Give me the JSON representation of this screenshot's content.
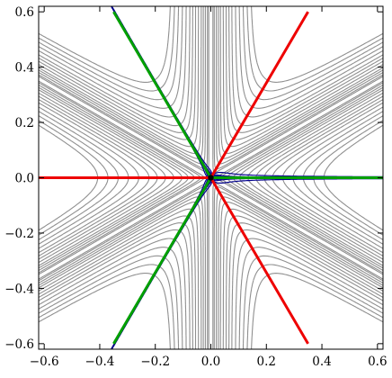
{
  "chart_data": {
    "type": "contour-streamline",
    "title": "",
    "xlabel": "",
    "ylabel": "",
    "xlim": [
      -0.62,
      0.62
    ],
    "ylim": [
      -0.62,
      0.62
    ],
    "x_ticks": [
      -0.6,
      -0.4,
      -0.2,
      0.0,
      0.2,
      0.4,
      0.6
    ],
    "x_tick_labels": [
      "−0.6",
      "−0.4",
      "−0.2",
      "0.0",
      "0.2",
      "0.4",
      "0.6"
    ],
    "y_ticks": [
      -0.6,
      -0.4,
      -0.2,
      0.0,
      0.2,
      0.4,
      0.6
    ],
    "y_tick_labels": [
      "−0.6",
      "−0.4",
      "−0.2",
      "0.0",
      "0.2",
      "0.4",
      "0.6"
    ],
    "grid": false,
    "legend": "none",
    "colors": {
      "contours": "#8f8f8f",
      "streamlines": "#00008b",
      "red_rays": "#ee0000",
      "green_rays": "#00a000",
      "center_point": "#000000",
      "frame": "#000000"
    },
    "contour_levels": {
      "description_function": "Re(z^3)/|z|^2 potential family",
      "levels": [
        -0.55,
        -0.5,
        -0.45,
        -0.4,
        -0.35,
        -0.3,
        -0.26,
        -0.22,
        -0.18,
        -0.14,
        -0.11,
        -0.08,
        -0.05,
        -0.03,
        0.03,
        0.05,
        0.08,
        0.11,
        0.14,
        0.18,
        0.22,
        0.26,
        0.3,
        0.35,
        0.4,
        0.45,
        0.5,
        0.55
      ]
    },
    "streamlines": {
      "center": [
        0.0,
        0.0
      ],
      "angles_deg": [
        8,
        16,
        24,
        32,
        44,
        50,
        56,
        68,
        76,
        84,
        92,
        100,
        108,
        126,
        135,
        142,
        150,
        160,
        170,
        190,
        200,
        210,
        218,
        225,
        234,
        252,
        260,
        268,
        276,
        284,
        292,
        304,
        310,
        316,
        328,
        336,
        344,
        352
      ]
    },
    "red_rays": [
      {
        "from": [
          0.0,
          0.0
        ],
        "to": [
          -0.62,
          0.0
        ]
      },
      {
        "from": [
          0.0,
          0.0
        ],
        "to": [
          0.35,
          0.6
        ]
      },
      {
        "from": [
          0.0,
          0.0
        ],
        "to": [
          0.35,
          -0.6
        ]
      }
    ],
    "green_rays": [
      {
        "from": [
          0.0,
          0.0
        ],
        "to": [
          0.62,
          0.0
        ]
      },
      {
        "from": [
          0.0,
          0.0
        ],
        "to": [
          -0.35,
          0.6
        ]
      },
      {
        "from": [
          0.0,
          0.0
        ],
        "to": [
          -0.35,
          -0.6
        ]
      }
    ]
  }
}
